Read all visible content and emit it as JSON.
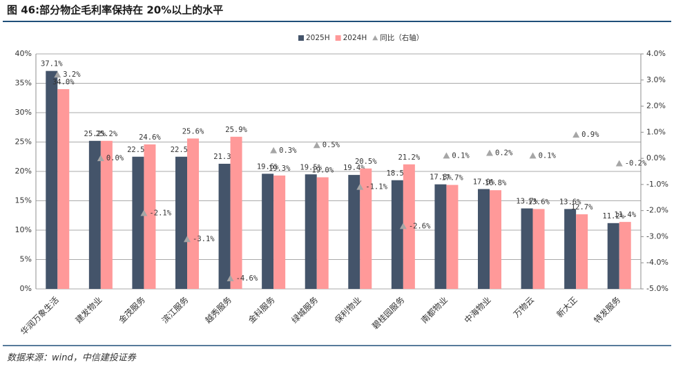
{
  "title": "图 46:部分物企毛利率保持在 20%以上的水平",
  "source": "数据来源：wind，中信建投证券",
  "chart_data": {
    "type": "bar",
    "categories": [
      "华润万象生活",
      "建发物业",
      "金茂服务",
      "滨江服务",
      "越秀服务",
      "金科服务",
      "绿城服务",
      "保利物业",
      "碧桂园服务",
      "南都物业",
      "中海物业",
      "万物云",
      "新大正",
      "特发服务"
    ],
    "series": [
      {
        "name": "2025H",
        "color": "#44546a",
        "values": [
          37.1,
          25.2,
          22.5,
          22.5,
          21.3,
          19.6,
          19.5,
          19.4,
          18.5,
          17.8,
          17.0,
          13.7,
          13.6,
          11.2
        ],
        "value_labels": [
          "37.1%",
          "25.2%",
          "22.5%",
          "22.5%",
          "21.3%",
          "19.6%",
          "19.5%",
          "19.4%",
          "18.5%",
          "17.8%",
          "17.0%",
          "13.7%",
          "13.6%",
          "11.2%"
        ]
      },
      {
        "name": "2024H",
        "color": "#ff9999",
        "values": [
          34.0,
          25.2,
          24.6,
          25.6,
          25.9,
          19.3,
          19.0,
          20.5,
          21.2,
          17.7,
          16.8,
          13.6,
          12.7,
          11.4
        ],
        "value_labels": [
          "34.0%",
          "25.2%",
          "24.6%",
          "25.6%",
          "25.9%",
          "19.3%",
          "19.0%",
          "20.5%",
          "21.2%",
          "17.7%",
          "16.8%",
          "13.6%",
          "12.7%",
          "11.4%"
        ]
      },
      {
        "name": "同比（右轴）",
        "type": "scatter",
        "axis": "y2",
        "color": "#a6a6a6",
        "values": [
          3.2,
          0.0,
          -2.1,
          -3.1,
          -4.6,
          0.3,
          0.5,
          -1.1,
          -2.6,
          0.1,
          0.2,
          0.1,
          0.9,
          -0.2
        ],
        "value_labels": [
          "3.2%",
          "0.0%",
          "-2.1%",
          "-3.1%",
          "-4.6%",
          "0.3%",
          "0.5%",
          "-1.1%",
          "-2.6%",
          "0.1%",
          "0.2%",
          "0.1%",
          "0.9%",
          "-0.2%"
        ]
      }
    ],
    "ylim": [
      0,
      40
    ],
    "yticks": [
      {
        "value": 0,
        "label": "0%"
      },
      {
        "value": 5,
        "label": "5%"
      },
      {
        "value": 10,
        "label": "10%"
      },
      {
        "value": 15,
        "label": "15%"
      },
      {
        "value": 20,
        "label": "20%"
      },
      {
        "value": 25,
        "label": "25%"
      },
      {
        "value": 30,
        "label": "30%"
      },
      {
        "value": 35,
        "label": "35%"
      },
      {
        "value": 40,
        "label": "40%"
      }
    ],
    "y2lim": [
      -5,
      4
    ],
    "y2ticks": [
      {
        "value": -5,
        "label": "-5.0%"
      },
      {
        "value": -4,
        "label": "-4.0%"
      },
      {
        "value": -3,
        "label": "-3.0%"
      },
      {
        "value": -2,
        "label": "-2.0%"
      },
      {
        "value": -1,
        "label": "-1.0%"
      },
      {
        "value": 0,
        "label": "0.0%"
      },
      {
        "value": 1,
        "label": "1.0%"
      },
      {
        "value": 2,
        "label": "2.0%"
      },
      {
        "value": 3,
        "label": "3.0%"
      },
      {
        "value": 4,
        "label": "4.0%"
      }
    ],
    "grid": true,
    "legend": "top"
  }
}
